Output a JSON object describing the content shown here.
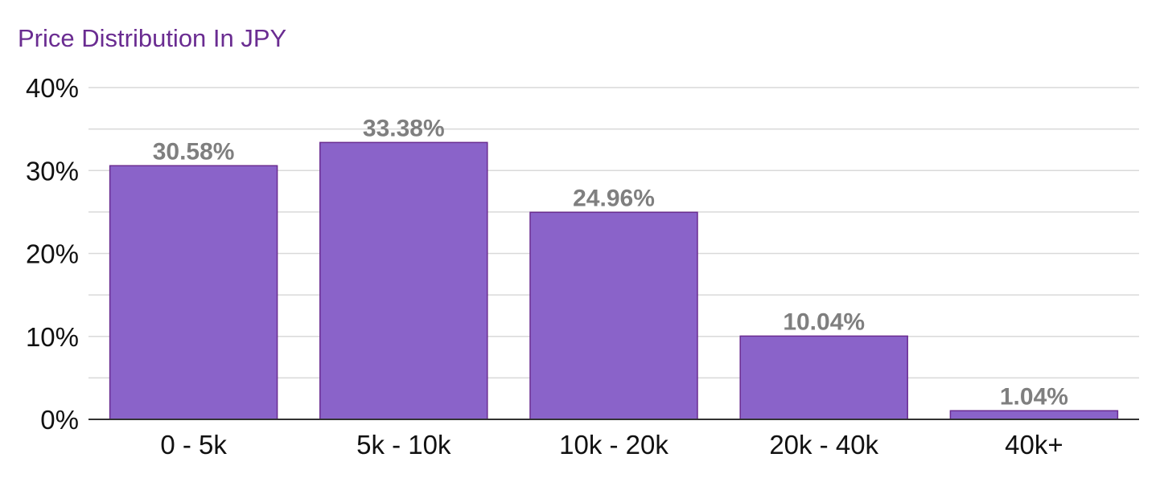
{
  "chart_data": {
    "type": "bar",
    "title": "Price Distribution In JPY",
    "xlabel": "",
    "ylabel": "",
    "categories": [
      "0 - 5k",
      "5k - 10k",
      "10k - 20k",
      "20k - 40k",
      "40k+"
    ],
    "values": [
      30.58,
      33.38,
      24.96,
      10.04,
      1.04
    ],
    "data_labels": [
      "30.58%",
      "33.38%",
      "24.96%",
      "10.04%",
      "1.04%"
    ],
    "ylim": [
      0,
      40
    ],
    "y_ticks": [
      0,
      10,
      20,
      30,
      40
    ],
    "y_tick_labels": [
      "0%",
      "10%",
      "20%",
      "30%",
      "40%"
    ],
    "y_minor_gridlines": [
      5,
      15,
      25,
      35
    ],
    "grid": true,
    "legend": "none",
    "colors": {
      "title": "#6a2c91",
      "bar_fill": "#8a63c9",
      "bar_stroke": "#6a2c91",
      "data_label": "#7f7f7f",
      "gridline": "#d9d9d9",
      "axis_text": "#111111"
    }
  }
}
